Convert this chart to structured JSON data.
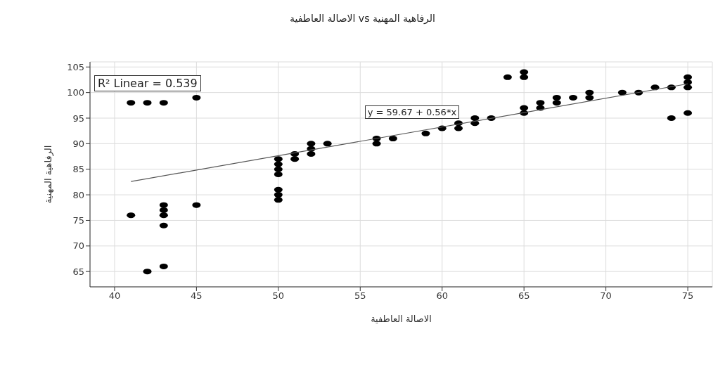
{
  "chart_data": {
    "type": "scatter",
    "title": "الاصالة العاطفية vs الرفاهية المهنية",
    "xlabel": "الاصالة العاطفية",
    "ylabel": "الرفاهية المهنية",
    "xlim": [
      38.5,
      76.5
    ],
    "xticks": [
      40,
      45,
      50,
      55,
      60,
      65,
      70,
      75
    ],
    "ylim": [
      62,
      106
    ],
    "yticks": [
      65,
      70,
      75,
      80,
      85,
      90,
      95,
      100,
      105
    ],
    "grid": true,
    "marker": "circle",
    "annotations": [
      "R² Linear = 0.539",
      "y = 59.67 + 0.56*x"
    ],
    "series": [
      {
        "color": "#000000",
        "x": [
          41,
          41,
          42,
          42,
          43,
          43,
          43,
          43,
          43,
          43,
          45,
          45,
          50,
          50,
          50,
          50,
          50,
          50,
          50,
          51,
          51,
          52,
          52,
          52,
          53,
          56,
          56,
          57,
          59,
          60,
          61,
          61,
          62,
          62,
          63,
          64,
          65,
          65,
          65,
          65,
          66,
          66,
          67,
          67,
          68,
          69,
          69,
          71,
          72,
          73,
          74,
          74,
          75,
          75,
          75,
          75
        ],
        "values": [
          98,
          76,
          98,
          65,
          98,
          78,
          77,
          76,
          74,
          66,
          99,
          78,
          87,
          86,
          85,
          84,
          81,
          80,
          79,
          88,
          87,
          90,
          89,
          88,
          90,
          91,
          90,
          91,
          92,
          93,
          94,
          93,
          95,
          94,
          95,
          103,
          104,
          103,
          97,
          96,
          98,
          97,
          99,
          98,
          99,
          100,
          99,
          100,
          100,
          101,
          101,
          95,
          103,
          102,
          101,
          96
        ]
      },
      {
        "type": "line",
        "marker": "none",
        "color": "#555555",
        "x": [
          41,
          75
        ],
        "values": [
          82.6,
          101.7
        ]
      }
    ]
  }
}
